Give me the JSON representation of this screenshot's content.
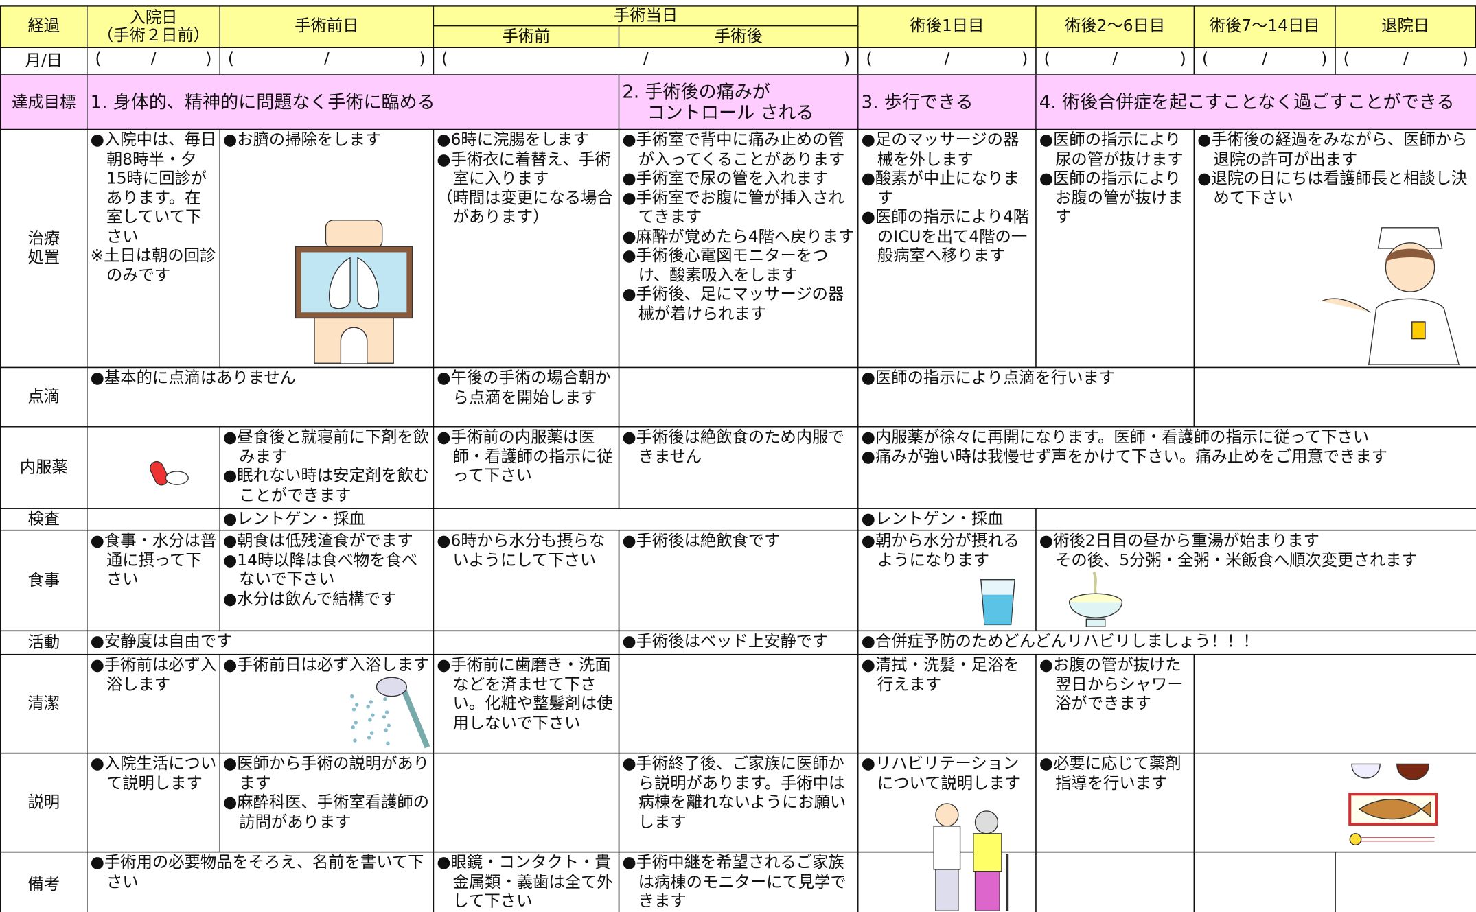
{
  "header": {
    "label": "経過",
    "admission": [
      "入院日",
      "（手術２日前）"
    ],
    "pre_op_day": "手術前日",
    "op_day": "手術当日",
    "op_before": "手術前",
    "op_after": "手術後",
    "post_day1": "術後1日目",
    "post_days2_6": "術後2〜6日目",
    "post_days7_14": "術後7〜14日目",
    "discharge": "退院日"
  },
  "date_row": {
    "label": "月/日",
    "cells": [
      "(　　/　　)",
      "(　　/　　)",
      "(　　/　　)",
      "(　　/　　)",
      "(　　/　　)",
      "(　　/　　)",
      "(　　/　　)"
    ]
  },
  "rows": [
    {
      "label": [
        "達成目標"
      ],
      "cells": [
        [
          "1. 身体的、精神的に問題なく手術に臨める"
        ],
        [
          "2. 手術後の痛みが",
          "コントロール される"
        ],
        [
          "3. 歩行できる"
        ],
        [
          "4. 術後合併症を起こすことなく過ごすことができる"
        ]
      ]
    },
    {
      "label": [
        "治療",
        "処置"
      ],
      "cells": [
        [
          "●入院中は、毎日朝8時半・夕15時に回診があります。在室していて下さい",
          "※土日は朝の回診のみです"
        ],
        [
          "●お臍の掃除をします"
        ],
        [
          "●6時に浣腸をします",
          "●手術衣に着替え、手術室に入ります",
          "（時間は変更になる場合があります）"
        ],
        [
          "●手術室で背中に痛み止めの管が入ってくることがあります",
          "●手術室で尿の管を入れます",
          "●手術室でお腹に管が挿入されてきます",
          "●麻酔が覚めたら4階へ戻ります",
          "●手術後心電図モニターをつけ、酸素吸入をします",
          "●手術後、足にマッサージの器械が着けられます"
        ],
        [
          "●足のマッサージの器械を外します",
          "●酸素が中止になります",
          "●医師の指示により4階のICUを出て4階の一般病室へ移ります"
        ],
        [
          "●医師の指示により尿の管が抜けます",
          "●医師の指示によりお腹の管が抜けます"
        ],
        [
          "●手術後の経過をみながら、医師から退院の許可が出ます",
          "●退院の日にちは看護師長と相談し決めて下さい"
        ]
      ]
    },
    {
      "label": [
        "点滴"
      ],
      "cells": [
        [
          "●基本的に点滴はありません"
        ],
        [
          "●午後の手術の場合朝から点滴を開始します"
        ],
        [],
        [
          "●医師の指示により点滴を行います"
        ],
        []
      ]
    },
    {
      "label": [
        "内服薬"
      ],
      "cells": [
        [],
        [
          "●昼食後と就寝前に下剤を飲みます",
          "●眠れない時は安定剤を飲むことができます"
        ],
        [
          "●手術前の内服薬は医師・看護師の指示に従って下さい"
        ],
        [
          "●手術後は絶飲食のため内服できません"
        ],
        [
          "●内服薬が徐々に再開になります。医師・看護師の指示に従って下さい",
          "●痛みが強い時は我慢せず声をかけて下さい。痛み止めをご用意できます"
        ]
      ]
    },
    {
      "label": [
        "検査"
      ],
      "cells": [
        [],
        [
          "●レントゲン・採血"
        ],
        [],
        [
          "●レントゲン・採血"
        ],
        []
      ]
    },
    {
      "label": [
        "食事"
      ],
      "cells": [
        [
          "●食事・水分は普通に摂って下さい"
        ],
        [
          "●朝食は低残渣食がでます",
          "●14時以降は食べ物を食べないで下さい",
          "●水分は飲んで結構です"
        ],
        [
          "●6時から水分も摂らないようにして下さい"
        ],
        [
          "●手術後は絶飲食です"
        ],
        [
          "●朝から水分が摂れるようになります"
        ],
        [
          "●術後2日目の昼から重湯が始まります",
          "その後、5分粥・全粥・米飯食へ順次変更されます"
        ]
      ]
    },
    {
      "label": [
        "活動"
      ],
      "cells": [
        [
          "●安静度は自由です"
        ],
        [],
        [
          "●手術後はベッド上安静です"
        ],
        [
          "●合併症予防のためどんどんリハビリしましょう！！！"
        ]
      ]
    },
    {
      "label": [
        "清潔"
      ],
      "cells": [
        [
          "●手術前は必ず入浴します"
        ],
        [
          "●手術前日は必ず入浴します"
        ],
        [
          "●手術前に歯磨き・洗面などを済ませて下さい。化粧や整髪剤は使用しないで下さい"
        ],
        [],
        [
          "●清拭・洗髪・足浴を行えます"
        ],
        [
          "●お腹の管が抜けた翌日からシャワー浴ができます"
        ],
        []
      ]
    },
    {
      "label": [
        "説明"
      ],
      "cells": [
        [
          "●入院生活について説明します"
        ],
        [
          "●医師から手術の説明があります",
          "●麻酔科医、手術室看護師の訪問があります"
        ],
        [],
        [
          "●手術終了後、ご家族に医師から説明があります。手術中は病棟を離れないようにお願いします"
        ],
        [
          "●リハビリテーションについて説明します"
        ],
        [
          "●必要に応じて薬剤指導を行います"
        ],
        []
      ]
    },
    {
      "label": [
        "備考"
      ],
      "cells": [
        [
          "●手術用の必要物品をそろえ、名前を書いて下さい"
        ],
        [
          "●眼鏡・コンタクト・貴金属類・義歯は全て外して下さい"
        ],
        [
          "●手術中継を希望されるご家族は病棟のモニターにて見学できます"
        ],
        [],
        [],
        [],
        []
      ]
    }
  ]
}
